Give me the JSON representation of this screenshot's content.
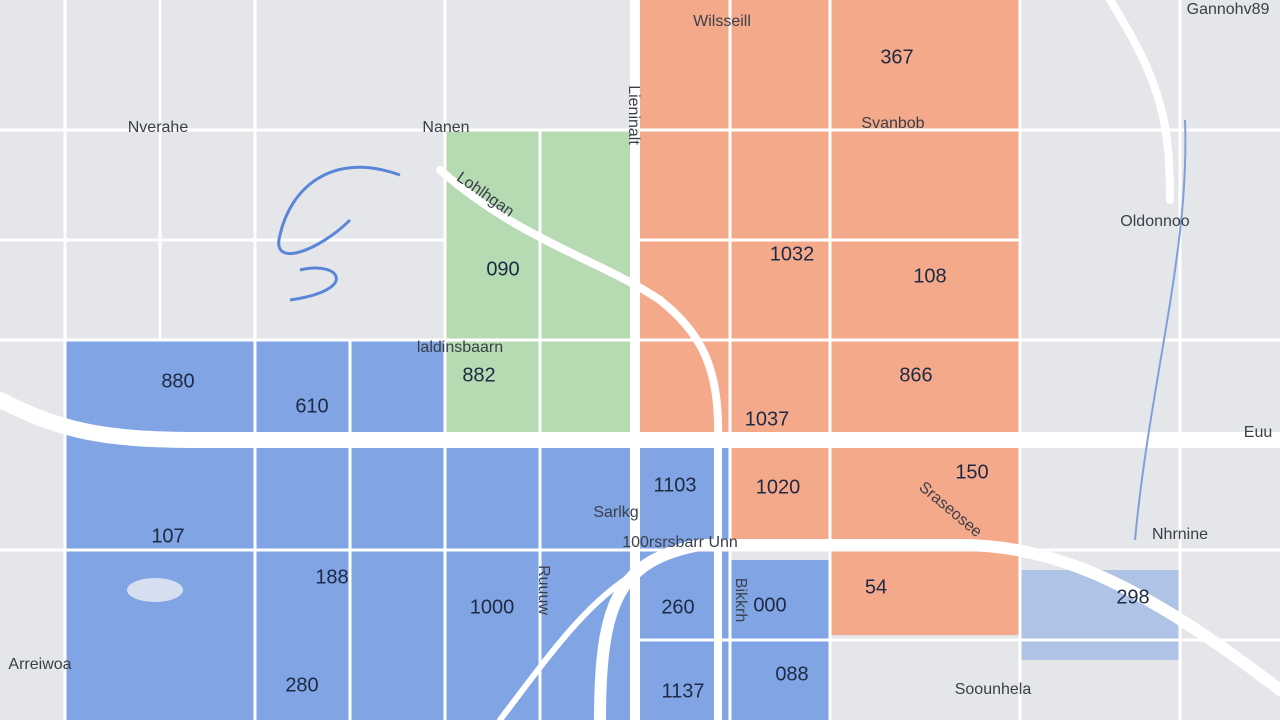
{
  "map": {
    "places": [
      "Gannohv89",
      "Nverahe",
      "Nanen",
      "Wilsseill",
      "Svanbob",
      "Lieninalt",
      "Oldonnoo",
      "Lohlhgan",
      "laldinsbaarn",
      "Euu",
      "Nhrnine",
      "Sraseosee",
      "100rsrsbarr Unn",
      "Sarlkg",
      "Arreiwoa",
      "Soounhela",
      "Ruuuw",
      "Bikkrh"
    ],
    "regions": [
      "367",
      "108",
      "866",
      "1032",
      "1037",
      "150",
      "1020",
      "54",
      "090",
      "882",
      "880",
      "610",
      "107",
      "188",
      "1000",
      "280",
      "1103",
      "260",
      "000",
      "088",
      "1137",
      "298"
    ]
  }
}
